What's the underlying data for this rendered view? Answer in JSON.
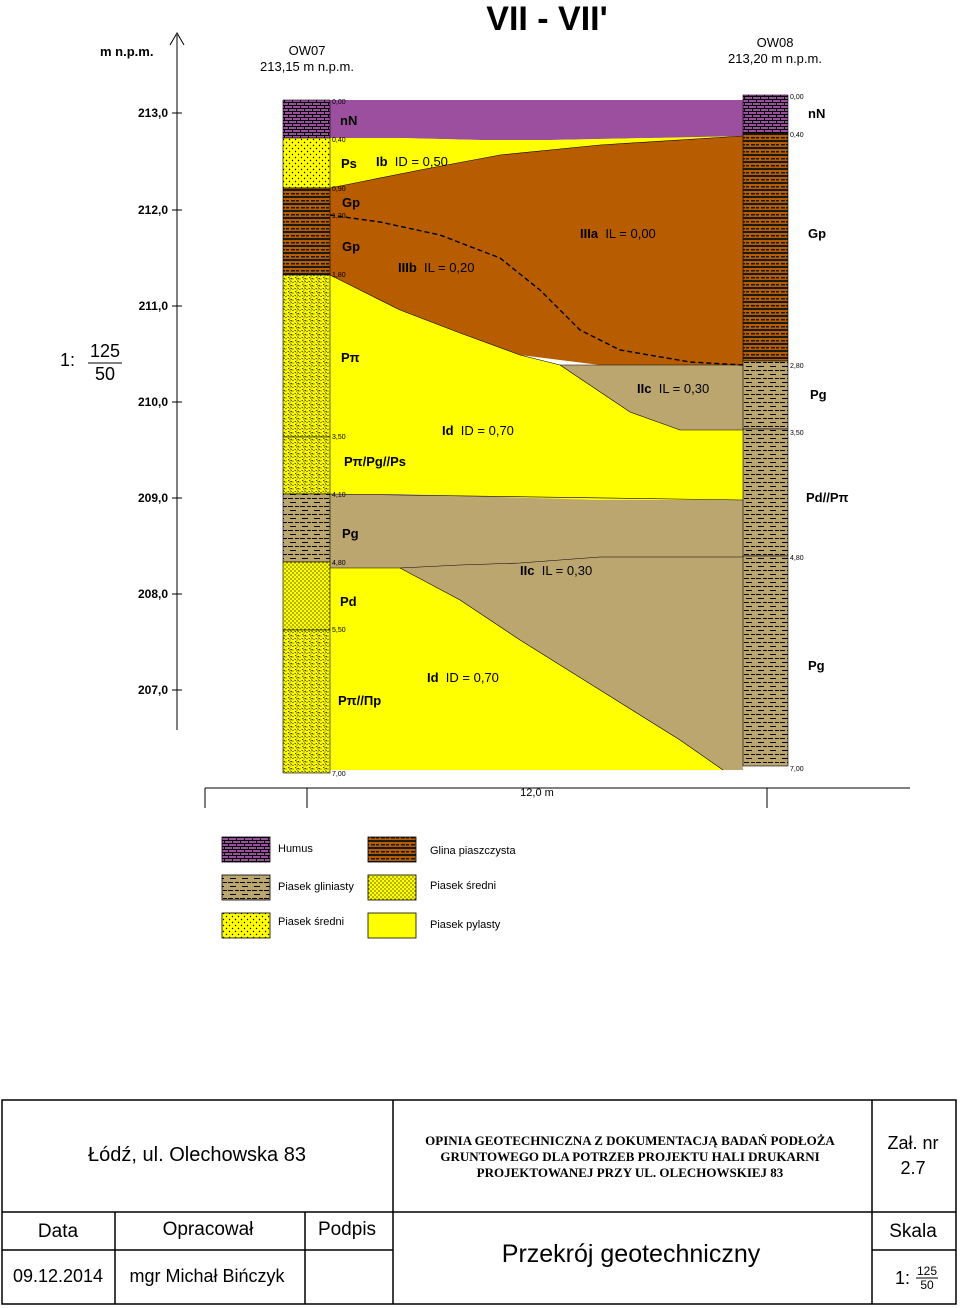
{
  "section_title": "VII   -   VII'",
  "axis_unit": "m n.p.m.",
  "boreholes": {
    "ow07": {
      "name": "OW07",
      "elev": "213,15 m n.p.m."
    },
    "ow08": {
      "name": "OW08",
      "elev": "213,20 m n.p.m."
    }
  },
  "elevation_ticks": [
    "213,0",
    "212,0",
    "211,0",
    "210,0",
    "209,0",
    "208,0",
    "207,0"
  ],
  "vertical_scale": {
    "prefix": "1:",
    "num": "125",
    "den": "50"
  },
  "depths_ow07": [
    "0,00",
    "0,40",
    "0,90",
    "1,20",
    "1,80",
    "3,50",
    "4,10",
    "4,80",
    "5,50",
    "7,00"
  ],
  "depths_ow08": [
    "0,00",
    "0,40",
    "2,80",
    "3,50",
    "4,80",
    "7,00"
  ],
  "soil_labels_ow07": {
    "nn": "nN",
    "ps": "Ps",
    "gp1": "Gp",
    "gp2": "Gp",
    "pi1": "Pπ",
    "mix1": "Pπ/Pg//Ps",
    "pg": "Pg",
    "pd": "Pd",
    "mix2": "Pπ//Πp"
  },
  "soil_labels_ow08": {
    "nn": "nN",
    "gp": "Gp",
    "pg1": "Pg",
    "pdpi": "Pd//Pπ",
    "pg2": "Pg"
  },
  "zones": {
    "ib": {
      "code": "Ib",
      "param": "ID = 0,50"
    },
    "iiib": {
      "code": "IIIb",
      "param": "IL = 0,20"
    },
    "iiia": {
      "code": "IIIa",
      "param": "IL = 0,00"
    },
    "iic1": {
      "code": "IIc",
      "param": "IL = 0,30"
    },
    "id1": {
      "code": "Id",
      "param": "ID = 0,70"
    },
    "iic2": {
      "code": "IIc",
      "param": "IL = 0,30"
    },
    "id2": {
      "code": "Id",
      "param": "ID = 0,70"
    }
  },
  "distance": "12,0 m",
  "legend": [
    "Humus",
    "Glina piaszczysta",
    "Piasek gliniasty",
    "Piasek średni",
    "Piasek średni",
    "Piasek pylasty"
  ],
  "footer": {
    "location": "Łódź, ul. Olechowska 83",
    "project_line1": "OPINIA GEOTECHNICZNA Z DOKUMENTACJĄ BADAŃ PODŁOŻA",
    "project_line2": "GRUNTOWEGO DLA POTRZEB PROJEKTU HALI DRUKARNI",
    "project_line3": "PROJEKTOWANEJ PRZY UL. OLECHOWSKIEJ 83",
    "zal_label": "Zał. nr",
    "zal_value": "2.7",
    "h_data": "Data",
    "h_opracowal": "Opracował",
    "h_podpis": "Podpis",
    "h_skala": "Skala",
    "date": "09.12.2014",
    "author": "mgr Michał Bińczyk",
    "drawing_title": "Przekrój geotechniczny",
    "scale_prefix": "1:",
    "scale_num": "125",
    "scale_den": "50"
  },
  "colors": {
    "humus": "#9b4f9e",
    "glina": "#b85c00",
    "piasek_gliniasty": "#bca670",
    "piasek_sredni": "#ffff00",
    "piasek_pylasty": "#ffff00",
    "pattern_dark": "#3a1f00"
  }
}
